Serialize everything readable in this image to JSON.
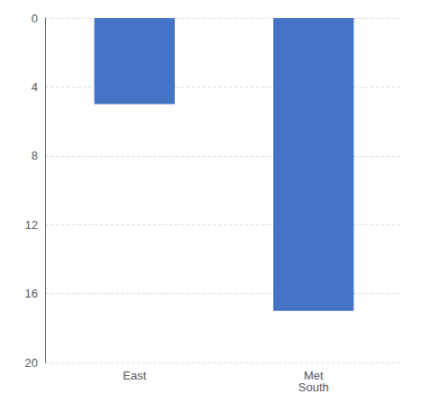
{
  "chart_data": {
    "type": "bar",
    "categories": [
      "East",
      "Met\nSouth"
    ],
    "values": [
      5,
      17
    ],
    "color": "#4472C4",
    "ylim": [
      0,
      20
    ],
    "yticks": [
      0,
      4,
      8,
      12,
      16,
      20
    ],
    "grid": true
  }
}
